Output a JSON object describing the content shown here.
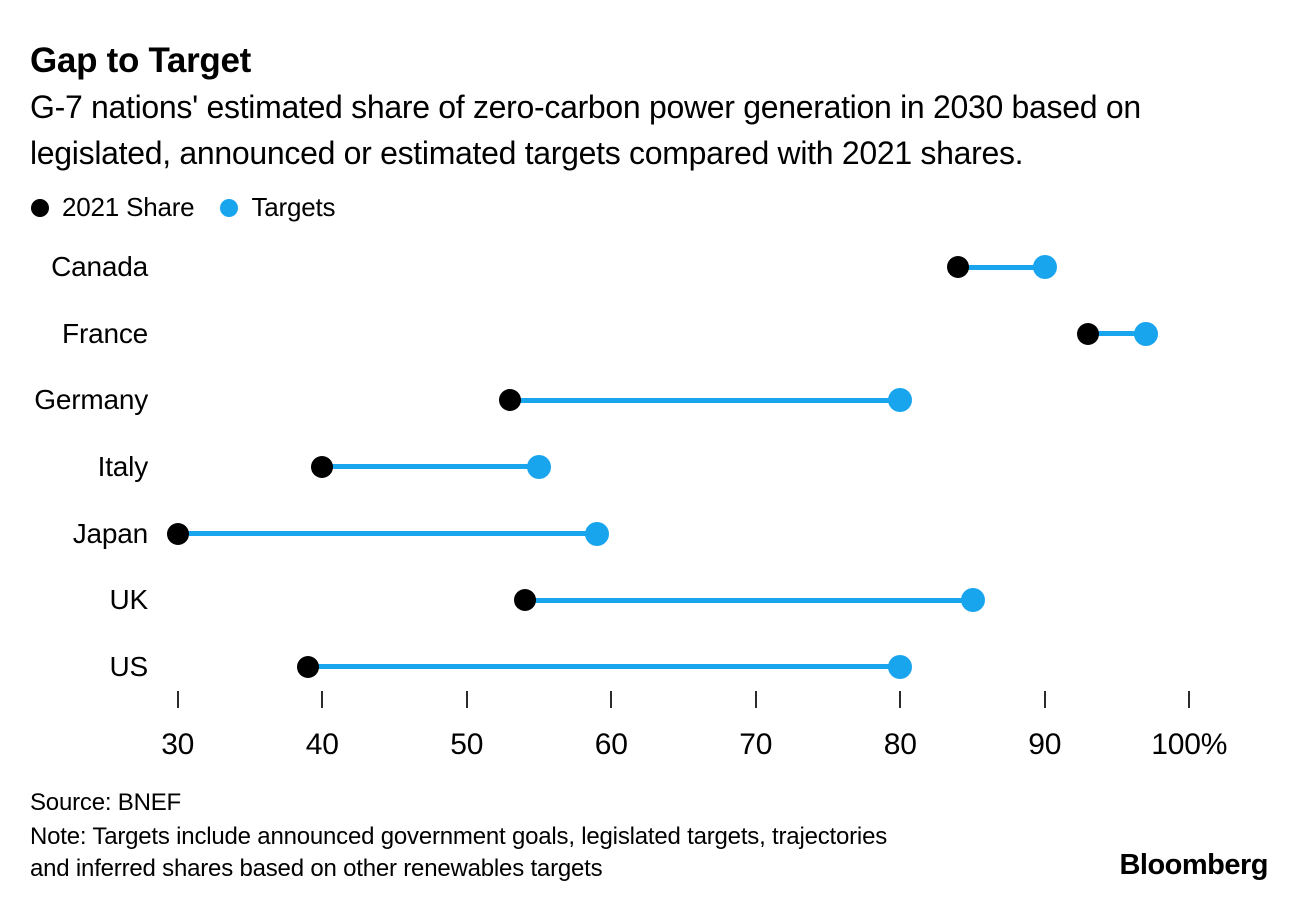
{
  "chart_data": {
    "type": "dumbbell",
    "title": "Gap to Target",
    "subtitle": "G-7 nations' estimated share of zero-carbon power generation in 2030 based on legislated, announced or estimated targets compared with 2021 shares.",
    "categories": [
      "Canada",
      "France",
      "Germany",
      "Italy",
      "Japan",
      "UK",
      "US"
    ],
    "series": [
      {
        "name": "2021 Share",
        "color": "#000000",
        "values": [
          84,
          93,
          53,
          40,
          30,
          54,
          39
        ]
      },
      {
        "name": "Targets",
        "color": "#19a5ee",
        "values": [
          90,
          97,
          80,
          55,
          59,
          85,
          80
        ]
      }
    ],
    "xlim": [
      30,
      100
    ],
    "x_ticks": [
      30,
      40,
      50,
      60,
      70,
      80,
      90,
      100
    ],
    "x_tick_labels": [
      "30",
      "40",
      "50",
      "60",
      "70",
      "80",
      "90",
      "100%"
    ],
    "unit": "%",
    "legend_position": "top-left",
    "grid": false
  },
  "footer": {
    "source": "Source: BNEF",
    "note_lines": [
      "Note: Targets include announced government goals, legislated targets, trajectories",
      "and inferred shares based on other renewables targets"
    ],
    "logo": "Bloomberg"
  }
}
